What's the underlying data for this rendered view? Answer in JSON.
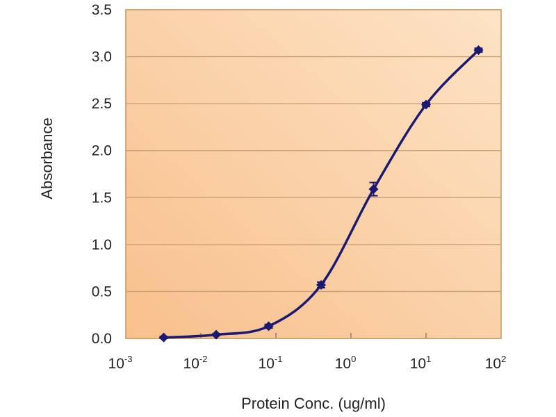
{
  "chart_data": {
    "type": "line",
    "title": "",
    "xlabel": "Protein Conc. (ug/ml)",
    "ylabel": "Absorbance",
    "xscale": "log",
    "xlim": [
      0.001,
      100
    ],
    "ylim": [
      0,
      3.5
    ],
    "grid": "horizontal",
    "legend": "none",
    "x_ticks": [
      {
        "value": 0.001,
        "base": "10",
        "exp": "-3"
      },
      {
        "value": 0.01,
        "base": "10",
        "exp": "-2"
      },
      {
        "value": 0.1,
        "base": "10",
        "exp": "-1"
      },
      {
        "value": 1,
        "base": "10",
        "exp": "0"
      },
      {
        "value": 10,
        "base": "10",
        "exp": "1"
      },
      {
        "value": 100,
        "base": "10",
        "exp": "2"
      }
    ],
    "y_ticks": [
      "0.0",
      "0.5",
      "1.0",
      "1.5",
      "2.0",
      "2.5",
      "3.0",
      "3.5"
    ],
    "series": [
      {
        "x": [
          0.0032,
          0.016,
          0.08,
          0.4,
          2,
          10,
          50
        ],
        "y": [
          0.01,
          0.04,
          0.13,
          0.57,
          1.59,
          2.49,
          3.07
        ],
        "error": [
          0.01,
          0.01,
          0.02,
          0.03,
          0.07,
          0.02,
          0.02
        ],
        "color": "#1c1a70"
      }
    ],
    "colors": {
      "plot_bg_top": "#fde3c6",
      "plot_bg_bottom": "#f8c08c",
      "border": "#c8965a",
      "grid": "#c79f74"
    }
  }
}
